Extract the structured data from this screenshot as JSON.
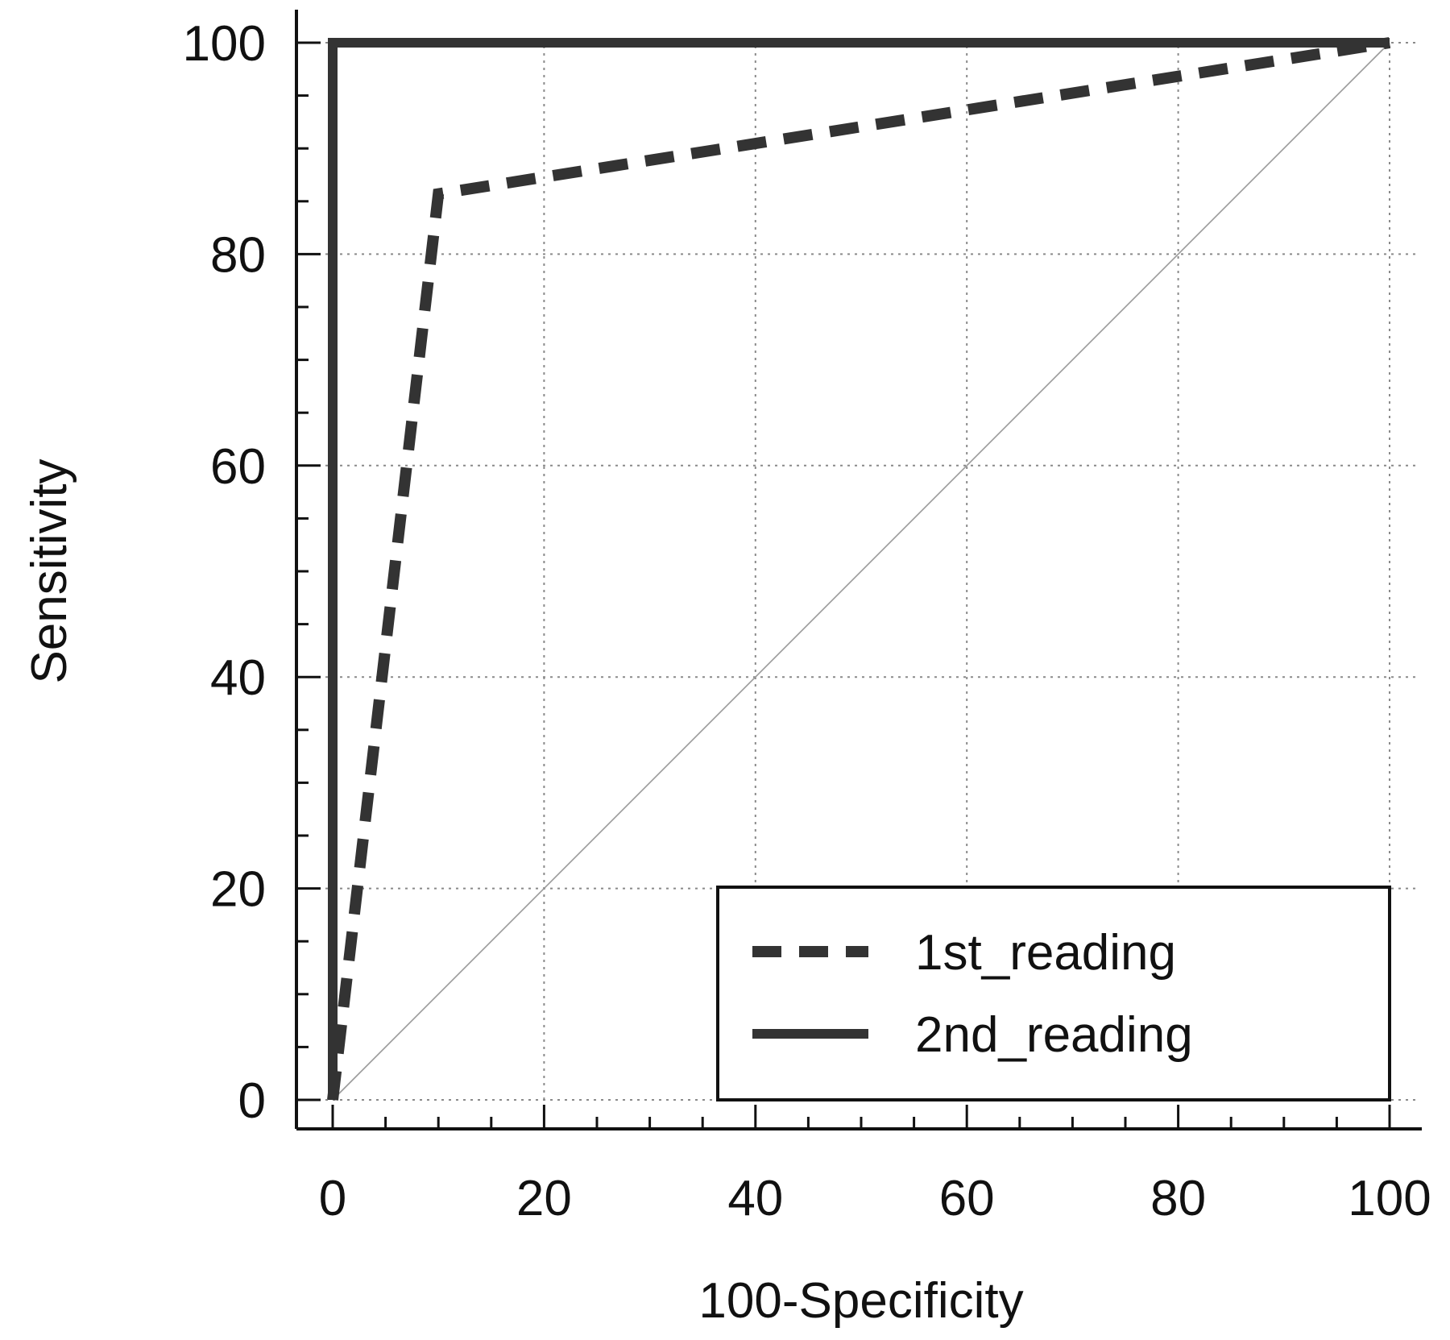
{
  "chart_data": {
    "type": "line",
    "title": "",
    "xlabel": "100-Specificity",
    "ylabel": "Sensitivity",
    "xlim": [
      0,
      100
    ],
    "ylim": [
      0,
      100
    ],
    "x_ticks": [
      "0",
      "20",
      "40",
      "60",
      "80",
      "100"
    ],
    "y_ticks": [
      "0",
      "20",
      "40",
      "60",
      "80",
      "100"
    ],
    "grid": true,
    "legend_position": "bottom-right",
    "reference_line": {
      "x": [
        0,
        100
      ],
      "y": [
        0,
        100
      ]
    },
    "series": [
      {
        "name": "1st_reading",
        "style": "dashed",
        "color": "#333333",
        "x": [
          0,
          10,
          100
        ],
        "y": [
          0,
          85.7,
          100
        ]
      },
      {
        "name": "2nd_reading",
        "style": "solid",
        "color": "#333333",
        "x": [
          0,
          0,
          100
        ],
        "y": [
          0,
          100,
          100
        ]
      }
    ]
  }
}
